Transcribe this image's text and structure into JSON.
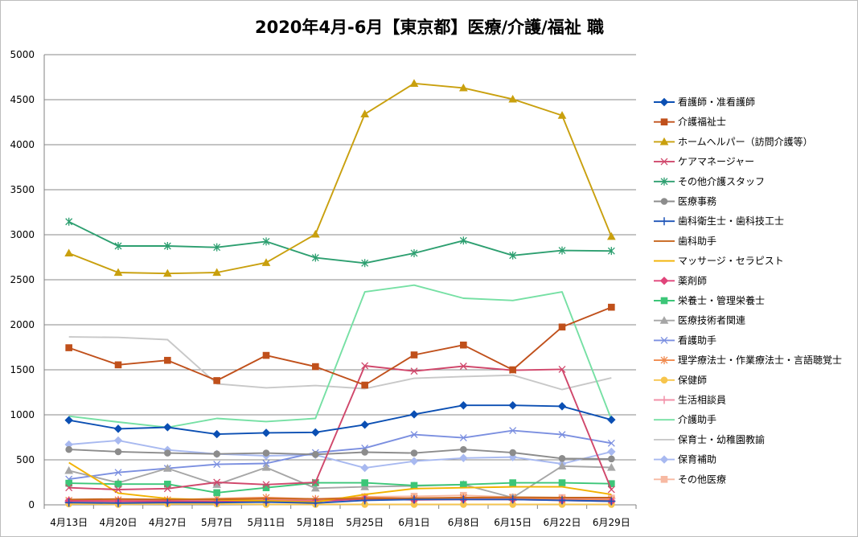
{
  "chart_data": {
    "type": "line",
    "title": "2020年4月-6月【東京都】医療/介護/福祉 職",
    "xlabel": "",
    "ylabel": "",
    "ylim": [
      0,
      5000
    ],
    "yticks": [
      0,
      500,
      1000,
      1500,
      2000,
      2500,
      3000,
      3500,
      4000,
      4500,
      5000
    ],
    "grid": true,
    "legend_position": "right",
    "categories": [
      "4月13日",
      "4月20日",
      "4月27日",
      "5月7日",
      "5月11日",
      "5月18日",
      "5月25日",
      "6月1日",
      "6月8日",
      "6月15日",
      "6月22日",
      "6月29日"
    ],
    "series": [
      {
        "name": "看護師・准看護師",
        "color": "#0b4fb3",
        "marker": "diamond",
        "values": [
          940,
          845,
          862,
          785,
          800,
          805,
          890,
          1005,
          1105,
          1105,
          1095,
          945
        ]
      },
      {
        "name": "介護福祉士",
        "color": "#c0501b",
        "marker": "square",
        "values": [
          1745,
          1555,
          1605,
          1380,
          1660,
          1535,
          1330,
          1665,
          1775,
          1500,
          1975,
          2195
        ]
      },
      {
        "name": "ホームヘルパー（訪問介護等）",
        "color": "#c9a00e",
        "marker": "triangle",
        "values": [
          2795,
          2580,
          2570,
          2580,
          2690,
          3005,
          4340,
          4680,
          4630,
          4505,
          4325,
          2980
        ]
      },
      {
        "name": "ケアマネージャー",
        "color": "#d0476b",
        "marker": "x",
        "values": [
          190,
          170,
          180,
          250,
          225,
          250,
          1545,
          1485,
          1540,
          1495,
          1505,
          170
        ]
      },
      {
        "name": "その他介護スタッフ",
        "color": "#2d9f70",
        "marker": "star",
        "values": [
          3145,
          2875,
          2875,
          2860,
          2925,
          2745,
          2685,
          2795,
          2935,
          2770,
          2825,
          2820
        ]
      },
      {
        "name": "医療事務",
        "color": "#8c8c8c",
        "marker": "circle",
        "values": [
          615,
          590,
          575,
          565,
          575,
          560,
          585,
          575,
          615,
          580,
          515,
          510
        ]
      },
      {
        "name": "歯科衛生士・歯科技工士",
        "color": "#1f55b8",
        "marker": "plus",
        "values": [
          25,
          20,
          25,
          25,
          30,
          20,
          50,
          60,
          60,
          60,
          50,
          40
        ]
      },
      {
        "name": "歯科助手",
        "color": "#c7661e",
        "marker": "none",
        "values": [
          60,
          65,
          60,
          60,
          70,
          65,
          70,
          75,
          80,
          85,
          80,
          80
        ]
      },
      {
        "name": "マッサージ・セラピスト",
        "color": "#f2b200",
        "marker": "none",
        "values": [
          470,
          130,
          70,
          55,
          45,
          30,
          115,
          180,
          190,
          200,
          200,
          115
        ]
      },
      {
        "name": "薬剤師",
        "color": "#e0447a",
        "marker": "diamond",
        "values": [
          45,
          40,
          40,
          35,
          45,
          40,
          65,
          55,
          60,
          60,
          50,
          40
        ]
      },
      {
        "name": "栄養士・管理栄養士",
        "color": "#3cc678",
        "marker": "square",
        "values": [
          240,
          230,
          230,
          135,
          190,
          245,
          245,
          215,
          225,
          245,
          245,
          235
        ]
      },
      {
        "name": "医療技術者関連",
        "color": "#a6a6a6",
        "marker": "triangle",
        "values": [
          380,
          245,
          405,
          225,
          415,
          185,
          200,
          210,
          225,
          80,
          430,
          415
        ]
      },
      {
        "name": "看護助手",
        "color": "#7b8fe0",
        "marker": "x",
        "values": [
          285,
          360,
          405,
          450,
          460,
          580,
          630,
          780,
          745,
          825,
          780,
          685
        ]
      },
      {
        "name": "理学療法士・作業療法士・言語聴覚士",
        "color": "#f08a4e",
        "marker": "star",
        "values": [
          50,
          55,
          55,
          70,
          80,
          65,
          85,
          70,
          80,
          80,
          60,
          55
        ]
      },
      {
        "name": "保健師",
        "color": "#f7c54d",
        "marker": "circle",
        "values": [
          10,
          5,
          10,
          10,
          5,
          5,
          5,
          5,
          5,
          5,
          5,
          5
        ]
      },
      {
        "name": "生活相談員",
        "color": "#f290a8",
        "marker": "plus",
        "values": [
          40,
          45,
          45,
          45,
          55,
          50,
          70,
          65,
          75,
          75,
          70,
          70
        ]
      },
      {
        "name": "介護助手",
        "color": "#76e0a4",
        "marker": "none",
        "values": [
          985,
          920,
          860,
          960,
          925,
          960,
          2365,
          2440,
          2295,
          2270,
          2365,
          950
        ]
      },
      {
        "name": "保育士・幼稚園教諭",
        "color": "#c8c8c8",
        "marker": "none",
        "values": [
          1865,
          1860,
          1835,
          1345,
          1300,
          1325,
          1290,
          1405,
          1425,
          1440,
          1280,
          1410
        ]
      },
      {
        "name": "保育補助",
        "color": "#a8b9f0",
        "marker": "diamond",
        "values": [
          670,
          715,
          610,
          565,
          545,
          555,
          410,
          485,
          520,
          530,
          455,
          590
        ]
      },
      {
        "name": "その他医療",
        "color": "#f7b9a2",
        "marker": "square",
        "values": [
          30,
          35,
          30,
          30,
          40,
          35,
          90,
          95,
          105,
          85,
          80,
          75
        ]
      }
    ]
  }
}
